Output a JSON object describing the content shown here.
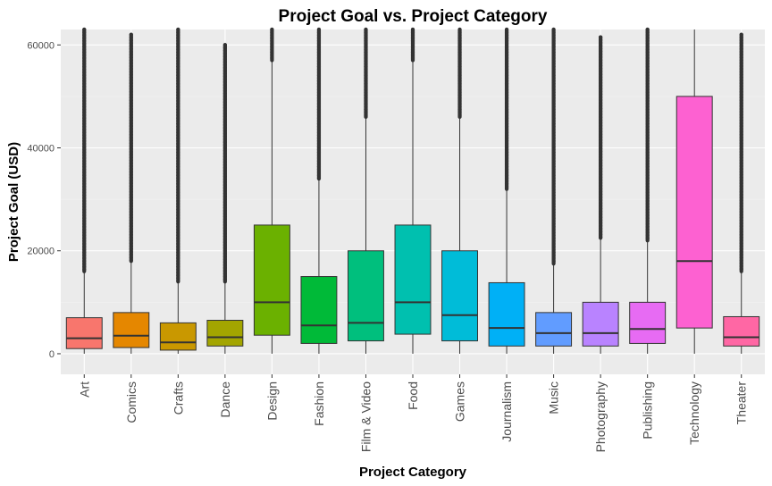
{
  "chart_data": {
    "type": "boxplot",
    "title": "Project Goal vs. Project Category",
    "xlabel": "Project Category",
    "ylabel": "Project Goal (USD)",
    "ylim": [
      -4000,
      63000
    ],
    "yticks": [
      0,
      20000,
      40000,
      60000
    ],
    "ytick_labels": [
      "0",
      "20000",
      "40000",
      "60000"
    ],
    "grid": true,
    "legend": "none",
    "categories": [
      "Art",
      "Comics",
      "Crafts",
      "Dance",
      "Design",
      "Fashion",
      "Film & Video",
      "Food",
      "Games",
      "Journalism",
      "Music",
      "Photography",
      "Publishing",
      "Technology",
      "Theater"
    ],
    "colors": [
      "#F8766D",
      "#E58700",
      "#C99800",
      "#A3A500",
      "#6BB100",
      "#00BA38",
      "#00BF7D",
      "#00C0AF",
      "#00BCD8",
      "#00B0F6",
      "#619CFF",
      "#B983FF",
      "#E76BF3",
      "#FD61D1",
      "#FF67A4"
    ],
    "boxes": [
      {
        "category": "Art",
        "min": 0,
        "q1": 1000,
        "median": 3000,
        "q3": 7000,
        "max": 16000,
        "outlier_min": 16000,
        "outlier_max": 63000
      },
      {
        "category": "Comics",
        "min": 0,
        "q1": 1200,
        "median": 3500,
        "q3": 8000,
        "max": 18000,
        "outlier_min": 18000,
        "outlier_max": 62000
      },
      {
        "category": "Crafts",
        "min": 0,
        "q1": 700,
        "median": 2200,
        "q3": 6000,
        "max": 14000,
        "outlier_min": 14000,
        "outlier_max": 63000
      },
      {
        "category": "Dance",
        "min": 0,
        "q1": 1500,
        "median": 3200,
        "q3": 6500,
        "max": 14000,
        "outlier_min": 14000,
        "outlier_max": 60000
      },
      {
        "category": "Design",
        "min": 0,
        "q1": 3600,
        "median": 10000,
        "q3": 25000,
        "max": 57000,
        "outlier_min": 57000,
        "outlier_max": 63000
      },
      {
        "category": "Fashion",
        "min": 0,
        "q1": 2000,
        "median": 5500,
        "q3": 15000,
        "max": 34000,
        "outlier_min": 34000,
        "outlier_max": 63000
      },
      {
        "category": "Film & Video",
        "min": 0,
        "q1": 2500,
        "median": 6000,
        "q3": 20000,
        "max": 46000,
        "outlier_min": 46000,
        "outlier_max": 63000
      },
      {
        "category": "Food",
        "min": 0,
        "q1": 3800,
        "median": 10000,
        "q3": 25000,
        "max": 57000,
        "outlier_min": 57000,
        "outlier_max": 63000
      },
      {
        "category": "Games",
        "min": 0,
        "q1": 2500,
        "median": 7500,
        "q3": 20000,
        "max": 46000,
        "outlier_min": 46000,
        "outlier_max": 63000
      },
      {
        "category": "Journalism",
        "min": 0,
        "q1": 1500,
        "median": 5000,
        "q3": 13800,
        "max": 32000,
        "outlier_min": 32000,
        "outlier_max": 63000
      },
      {
        "category": "Music",
        "min": 0,
        "q1": 1500,
        "median": 4000,
        "q3": 8000,
        "max": 17500,
        "outlier_min": 17500,
        "outlier_max": 63000
      },
      {
        "category": "Photography",
        "min": 0,
        "q1": 1500,
        "median": 4000,
        "q3": 10000,
        "max": 22500,
        "outlier_min": 22500,
        "outlier_max": 61500
      },
      {
        "category": "Publishing",
        "min": 0,
        "q1": 2000,
        "median": 4800,
        "q3": 10000,
        "max": 22000,
        "outlier_min": 22000,
        "outlier_max": 63000
      },
      {
        "category": "Technology",
        "min": 0,
        "q1": 5000,
        "median": 18000,
        "q3": 50000,
        "max": 63000,
        "outlier_min": null,
        "outlier_max": null
      },
      {
        "category": "Theater",
        "min": 0,
        "q1": 1500,
        "median": 3200,
        "q3": 7200,
        "max": 16000,
        "outlier_min": 16000,
        "outlier_max": 62000
      }
    ]
  }
}
